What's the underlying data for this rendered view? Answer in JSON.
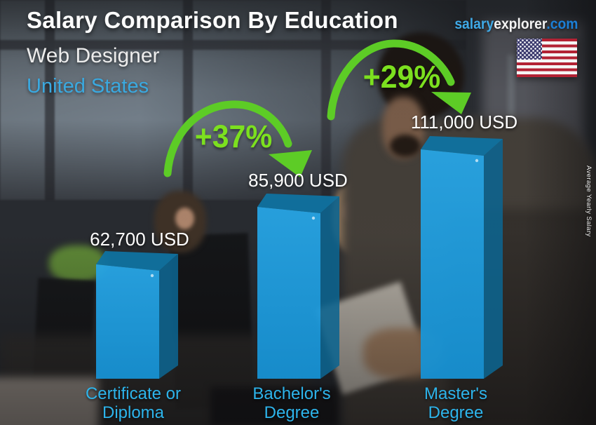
{
  "header": {
    "title": "Salary Comparison By Education",
    "brand_salary": "salary",
    "brand_explorer": "explorer",
    "brand_tld": ".com",
    "job_title": "Web Designer",
    "country": "United States"
  },
  "side_label": "Average Yearly Salary",
  "icons": {
    "flag": "us-flag-icon",
    "increase_arrow": "curved-down-arrow-icon"
  },
  "colors": {
    "bar_front_light": "#27a5e5",
    "bar_front_dark": "#1691d3",
    "bar_top": "#10719f",
    "bar_side": "#0d648f",
    "category_label": "#2db4eb",
    "value_label": "#ffffff",
    "increase_text_green": "#7ce01f",
    "arrow_green": "#5dcc26",
    "brand_salary_blue": "#3fa9e6",
    "brand_tld_blue": "#1b7fd6",
    "country_blue": "#3aa9e0"
  },
  "chart_data": {
    "type": "bar",
    "title": "Salary Comparison By Education",
    "job": "Web Designer",
    "region": "United States",
    "ylabel": "Average Yearly Salary",
    "currency": "USD",
    "categories": [
      "Certificate or Diploma",
      "Bachelor's Degree",
      "Master's Degree"
    ],
    "values": [
      62700,
      85900,
      111000
    ],
    "value_labels": [
      "62,700 USD",
      "85,900 USD",
      "111,000 USD"
    ],
    "increases": [
      {
        "from": "Certificate or Diploma",
        "to": "Bachelor's Degree",
        "label": "+37%",
        "percent": 37
      },
      {
        "from": "Bachelor's Degree",
        "to": "Master's Degree",
        "label": "+29%",
        "percent": 29
      }
    ],
    "legend_position": "none",
    "grid": false
  }
}
